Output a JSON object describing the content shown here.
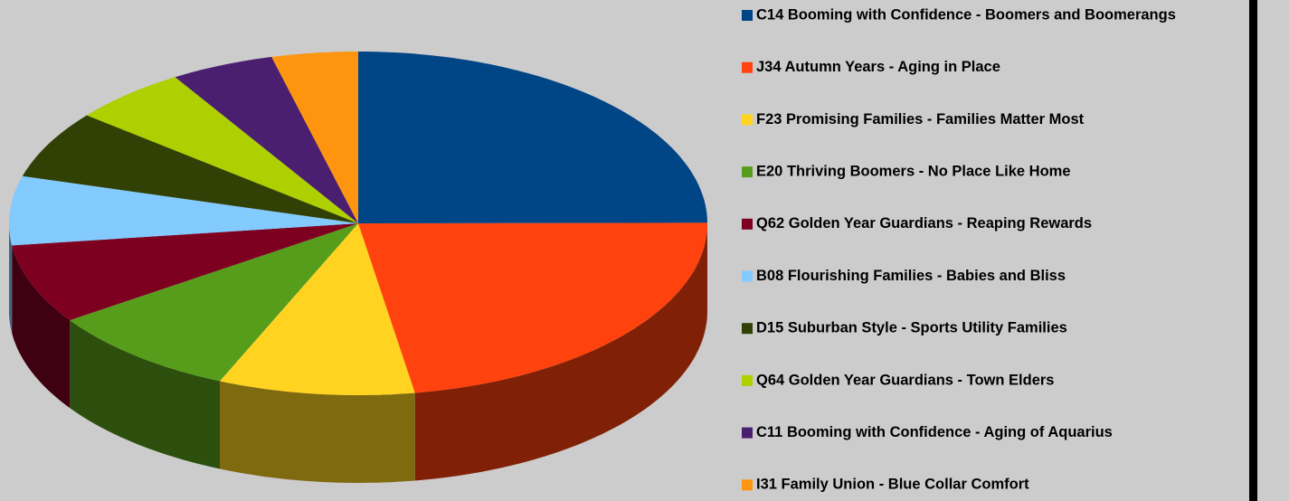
{
  "chart_data": {
    "type": "pie",
    "three_d": true,
    "categories": [
      "C14 Booming with Confidence - Boomers and Boomerangs",
      "J34 Autumn Years - Aging in Place",
      "F23 Promising Families - Families Matter Most",
      "E20 Thriving Boomers - No Place Like Home",
      "Q62 Golden Year Guardians - Reaping Rewards",
      "B08 Flourishing Families - Babies and Bliss",
      "D15 Suburban Style - Sports Utility Families",
      "Q64 Golden Year Guardians - Town Elders",
      "C11 Booming with Confidence - Aging of Aquarius",
      "I31 Family Union - Blue Collar Comfort"
    ],
    "values": [
      25,
      22.5,
      9.1,
      9,
      7.5,
      6.5,
      6.4,
      5.4,
      4.8,
      4
    ],
    "colors": [
      "#004586",
      "#ff420e",
      "#ffd320",
      "#579d1c",
      "#7e0021",
      "#83caff",
      "#314004",
      "#aecf00",
      "#4b1f6f",
      "#ff950e"
    ],
    "legend": "right"
  }
}
